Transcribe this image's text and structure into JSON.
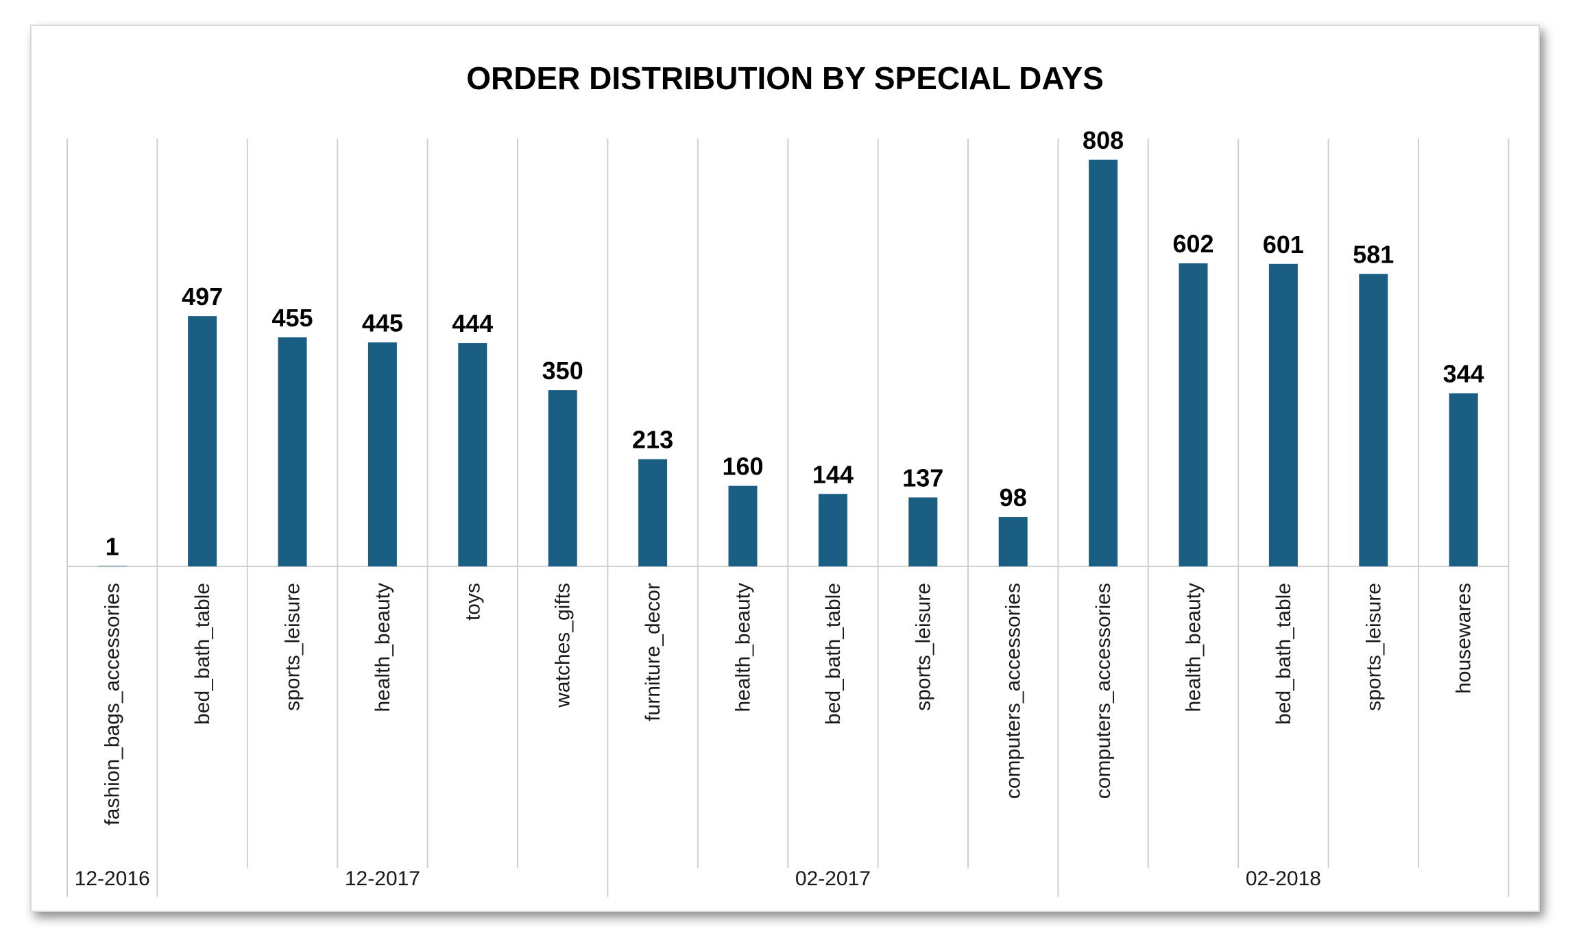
{
  "chart_data": {
    "type": "bar",
    "title": "ORDER DISTRIBUTION BY SPECIAL DAYS",
    "xlabel": "",
    "ylabel": "",
    "ylim": [
      0,
      850
    ],
    "grid": false,
    "legend": "none",
    "bar_color": "#1b5e84",
    "groups": [
      {
        "label": "12-2016",
        "categories": [
          "fashion_bags_accessories"
        ],
        "values": [
          1
        ]
      },
      {
        "label": "12-2017",
        "categories": [
          "bed_bath_table",
          "sports_leisure",
          "health_beauty",
          "toys",
          "watches_gifts"
        ],
        "values": [
          497,
          455,
          445,
          444,
          350
        ]
      },
      {
        "label": "02-2017",
        "categories": [
          "furniture_decor",
          "health_beauty",
          "bed_bath_table",
          "sports_leisure",
          "computers_accessories"
        ],
        "values": [
          213,
          160,
          144,
          137,
          98
        ]
      },
      {
        "label": "02-2018",
        "categories": [
          "computers_accessories",
          "health_beauty",
          "bed_bath_table",
          "sports_leisure",
          "housewares"
        ],
        "values": [
          808,
          602,
          601,
          581,
          344
        ]
      }
    ]
  }
}
